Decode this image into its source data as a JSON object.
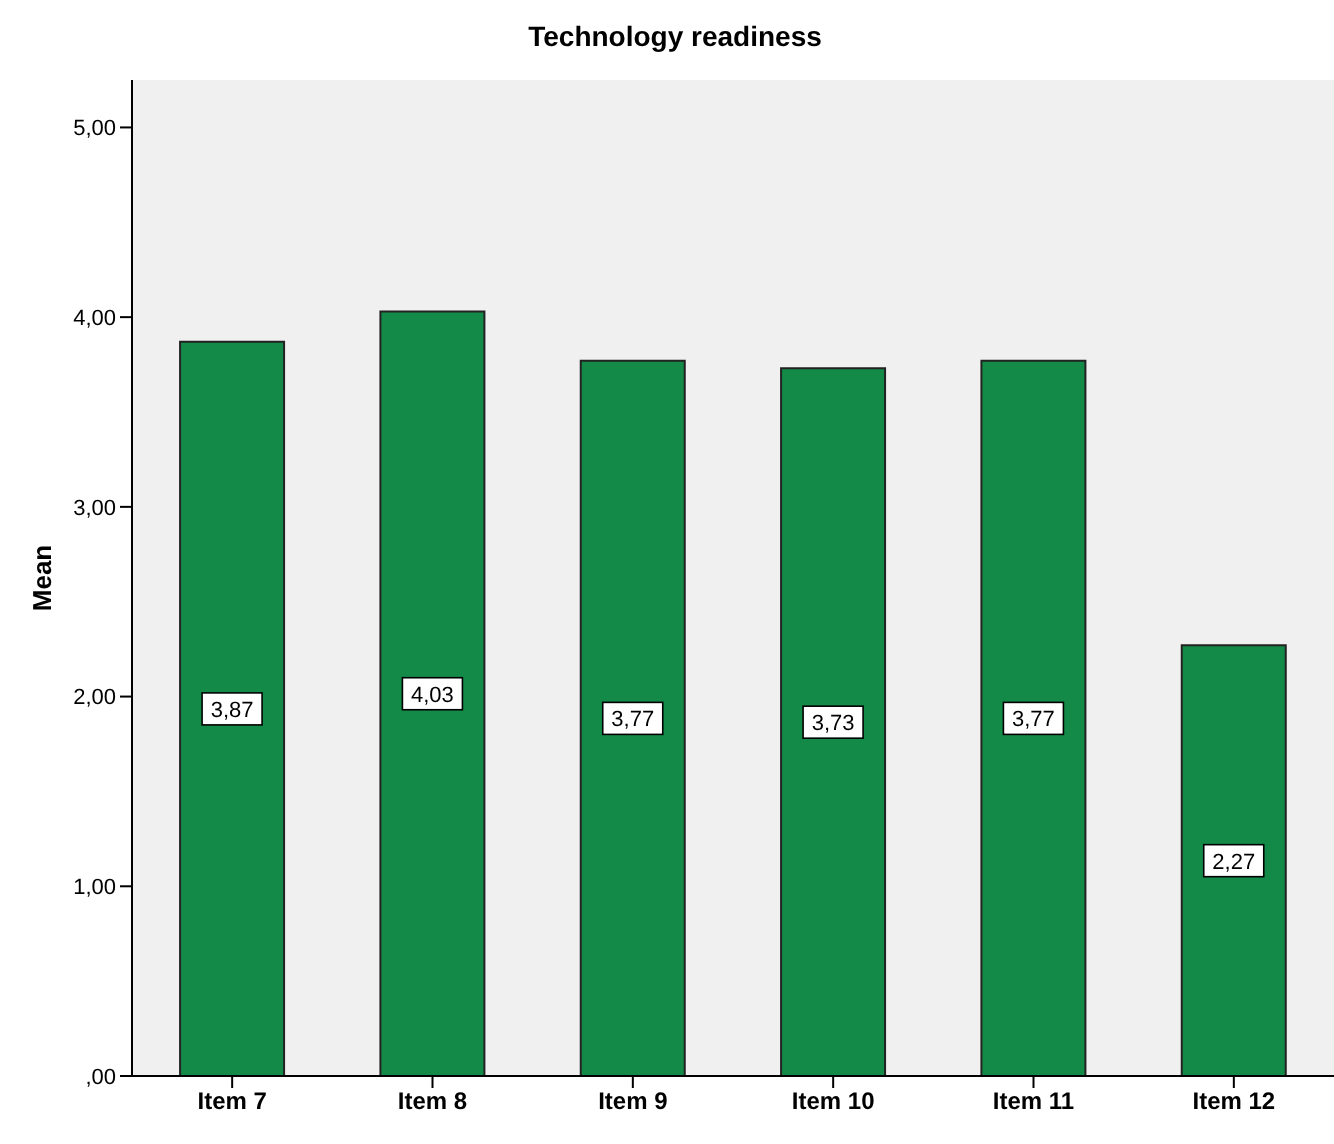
{
  "chart_data": {
    "type": "bar",
    "title": "Technology readiness",
    "ylabel": "Mean",
    "categories": [
      "Item 7",
      "Item 8",
      "Item 9",
      "Item 10",
      "Item 11",
      "Item 12"
    ],
    "values": [
      3.87,
      4.03,
      3.77,
      3.73,
      3.77,
      2.27
    ],
    "value_labels": [
      "3,87",
      "4,03",
      "3,77",
      "3,73",
      "3,77",
      "2,27"
    ],
    "color": "#138a47",
    "ylim": [
      0,
      5.25
    ],
    "yticks": [
      {
        "value": 0,
        "label": ",00"
      },
      {
        "value": 1,
        "label": "1,00"
      },
      {
        "value": 2,
        "label": "2,00"
      },
      {
        "value": 3,
        "label": "3,00"
      },
      {
        "value": 4,
        "label": "4,00"
      },
      {
        "value": 5,
        "label": "5,00"
      }
    ],
    "grid": false,
    "legend": false
  }
}
